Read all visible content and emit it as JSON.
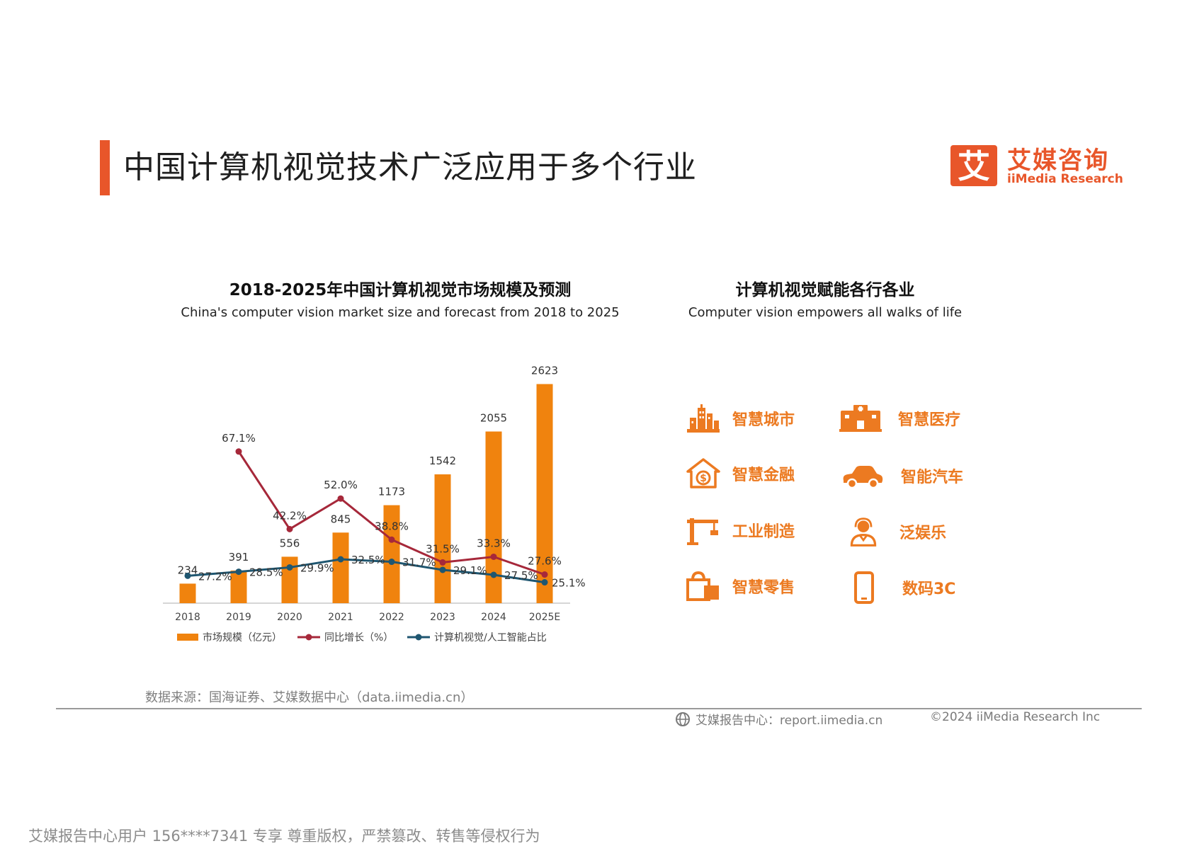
{
  "page": {
    "title": "中国计算机视觉技术广泛应用于多个行业",
    "accent_color": "#e8562a"
  },
  "logo": {
    "cn": "艾媒咨询",
    "en": "iiMedia Research",
    "mark_char": "艾",
    "color": "#e8562a"
  },
  "chart_section": {
    "title": "2018-2025年中国计算机视觉市场规模及预测",
    "subtitle": "China's computer vision market size and forecast from 2018 to 2025"
  },
  "chart_data": {
    "type": "bar",
    "title": "2018-2025年中国计算机视觉市场规模及预测",
    "subtitle": "China's computer vision market size and forecast from 2018 to 2025",
    "categories": [
      "2018",
      "2019",
      "2020",
      "2021",
      "2022",
      "2023",
      "2024",
      "2025E"
    ],
    "ylim": [
      0,
      3000
    ],
    "series": [
      {
        "name": "市场规模（亿元）",
        "kind": "bar",
        "color": "#f0830e",
        "values": [
          234,
          391,
          556,
          845,
          1173,
          1542,
          2055,
          2623
        ],
        "labels": [
          "234",
          "391",
          "556",
          "845",
          "1173",
          "1542",
          "2055",
          "2623"
        ]
      },
      {
        "name": "同比增长（%）",
        "kind": "line",
        "color": "#a6283a",
        "x": [
          "2019",
          "2020",
          "2021",
          "2022",
          "2023",
          "2024",
          "2025E"
        ],
        "values": [
          67.1,
          42.2,
          52.0,
          38.8,
          31.5,
          33.3,
          27.6
        ],
        "labels": [
          "67.1%",
          "42.2%",
          "52.0%",
          "38.8%",
          "31.5%",
          "33.3%",
          "27.6%"
        ]
      },
      {
        "name": "计算机视觉/人工智能占比",
        "kind": "line",
        "color": "#1f5670",
        "values": [
          27.2,
          28.5,
          29.9,
          32.5,
          31.7,
          29.1,
          27.5,
          25.1
        ],
        "labels": [
          "27.2%",
          "28.5%",
          "29.9%",
          "32.5%",
          "31.7%",
          "29.1%",
          "27.5%",
          "25.1%"
        ]
      }
    ],
    "legend_position": "bottom",
    "grid": false
  },
  "industries": {
    "title": "计算机视觉赋能各行各业",
    "subtitle": "Computer vision empowers all walks of life",
    "color": "#ec7a21",
    "items": [
      {
        "label": "智慧城市",
        "icon": "city-buildings-icon"
      },
      {
        "label": "智慧医疗",
        "icon": "hospital-icon"
      },
      {
        "label": "智慧金融",
        "icon": "finance-dollar-house-icon"
      },
      {
        "label": "智能汽车",
        "icon": "car-icon"
      },
      {
        "label": "工业制造",
        "icon": "crane-icon"
      },
      {
        "label": "泛娱乐",
        "icon": "headset-person-icon"
      },
      {
        "label": "智慧零售",
        "icon": "shopping-bag-icon"
      },
      {
        "label": "数码3C",
        "icon": "smartphone-icon"
      }
    ]
  },
  "footer": {
    "source": "数据来源：国海证券、艾媒数据中心（data.iimedia.cn）",
    "report": "艾媒报告中心：report.iimedia.cn",
    "copyright": "©2024  iiMedia Research  Inc",
    "watermark": "艾媒报告中心用户 156****7341 专享 尊重版权，严禁篡改、转售等侵权行为"
  }
}
